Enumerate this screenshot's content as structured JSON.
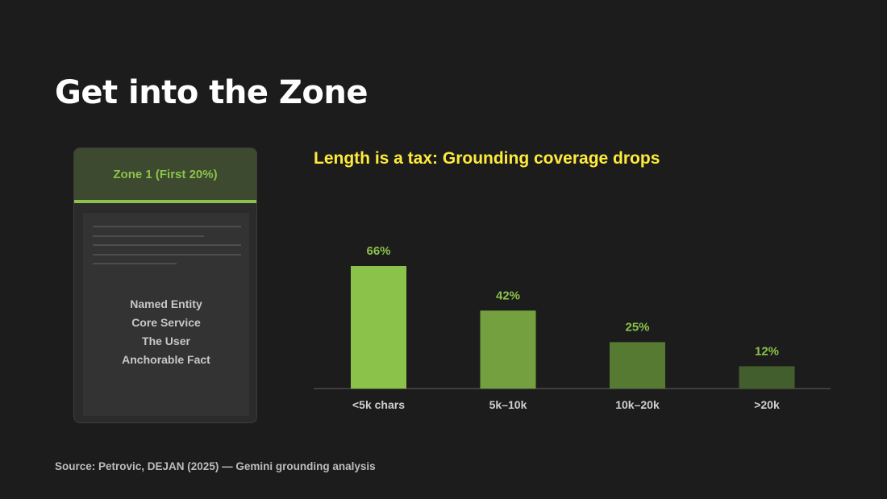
{
  "slide": {
    "title": "Get into the Zone",
    "source": "Source: Petrovic, DEJAN (2025) — Gemini grounding analysis"
  },
  "doc_card": {
    "zone_label": "Zone 1 (First 20%)",
    "items": [
      "Named Entity",
      "Core Service",
      "The User",
      "Anchorable Fact"
    ],
    "accent": "#8bc34a"
  },
  "chart_data": {
    "type": "bar",
    "title": "Length is a tax: Grounding coverage drops",
    "categories": [
      "<5k chars",
      "5k–10k",
      "10k–20k",
      ">20k"
    ],
    "values": [
      66,
      42,
      25,
      12
    ],
    "data_labels": [
      "66%",
      "42%",
      "25%",
      "12%"
    ],
    "colors": [
      "#8bc34a",
      "#74a040",
      "#577a33",
      "#435e2d"
    ],
    "label_color": "#8bc34a",
    "xlabel": "",
    "ylabel": "",
    "ylim": [
      0,
      66
    ],
    "grid": false
  }
}
